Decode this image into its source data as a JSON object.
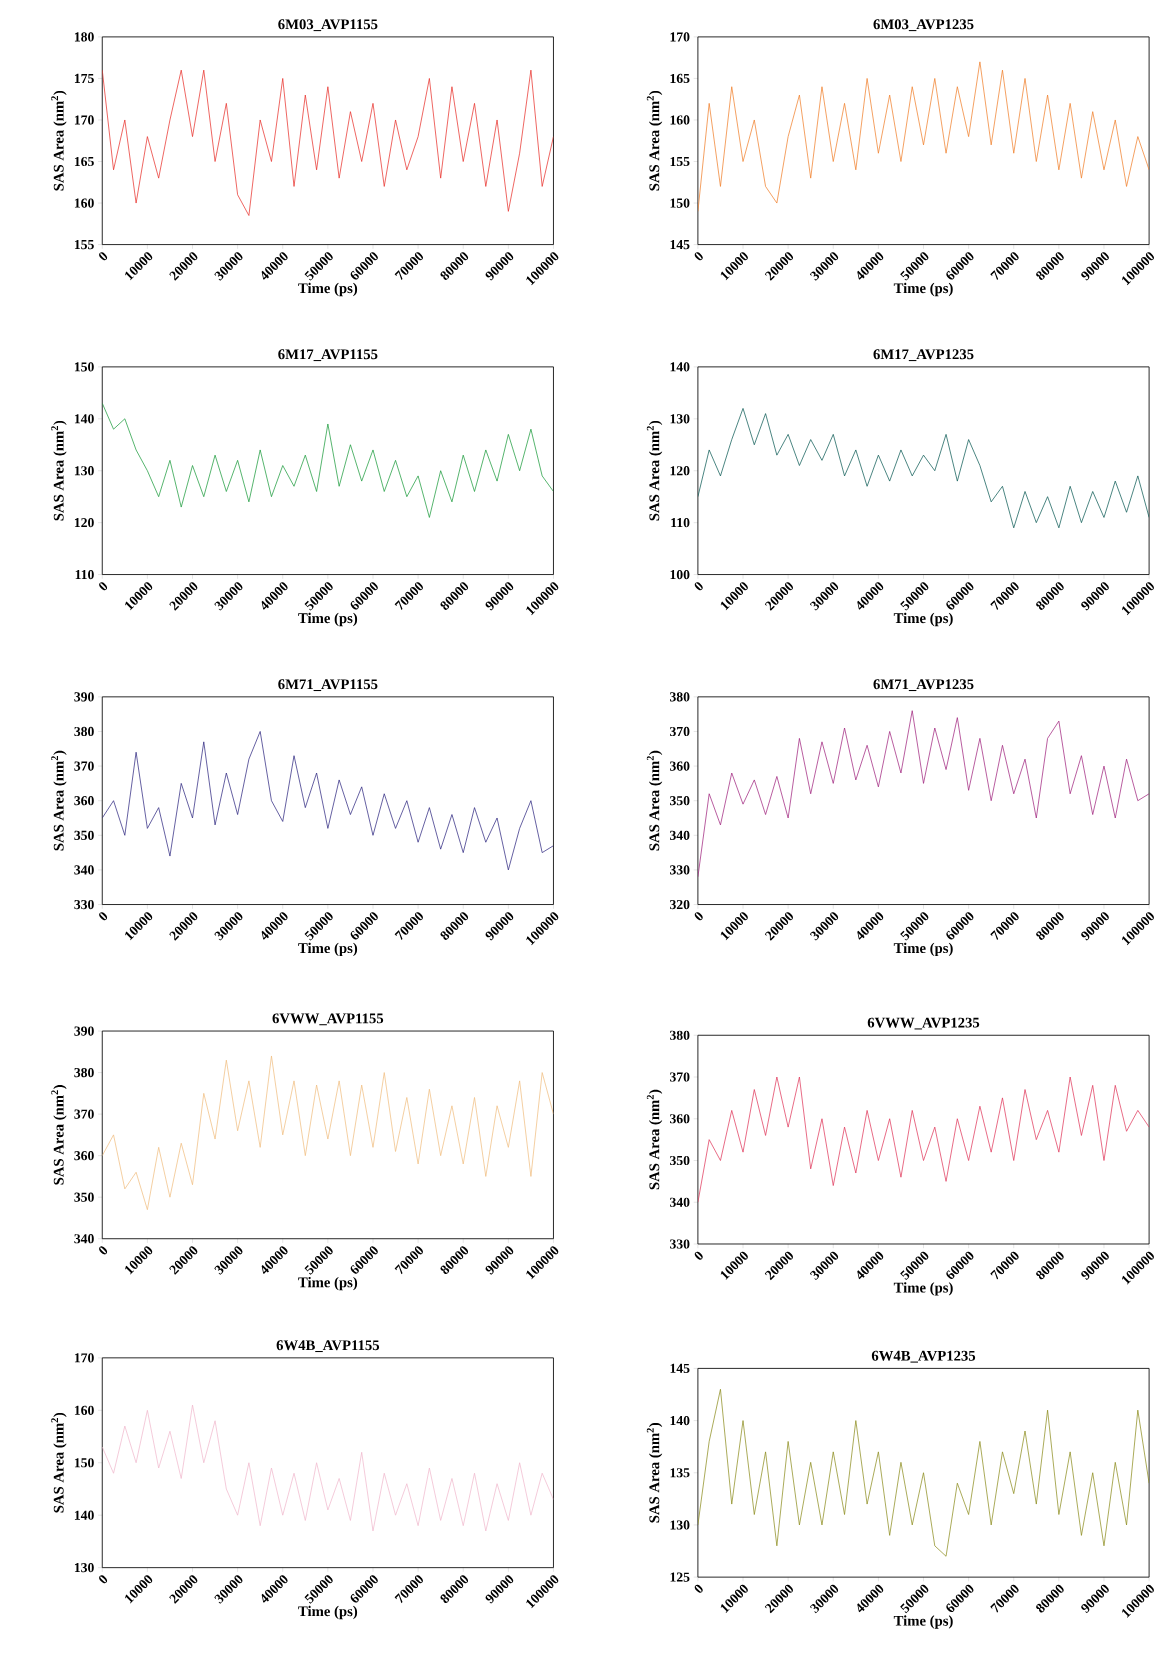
{
  "chart_data": [
    {
      "type": "line",
      "title": "6M03_AVP1155",
      "xlabel": "Time (ps)",
      "ylabel": "SAS Area (nm$^{2}$)",
      "color": "#e8302a",
      "xlim": [
        0,
        100000
      ],
      "xticks": [
        0,
        10000,
        20000,
        30000,
        40000,
        50000,
        60000,
        70000,
        80000,
        90000,
        100000
      ],
      "ylim": [
        155,
        180
      ],
      "yticks": [
        155,
        160,
        165,
        170,
        175,
        180
      ],
      "x": [
        0,
        2500,
        5000,
        7500,
        10000,
        12500,
        15000,
        17500,
        20000,
        22500,
        25000,
        27500,
        30000,
        32500,
        35000,
        37500,
        40000,
        42500,
        45000,
        47500,
        50000,
        52500,
        55000,
        57500,
        60000,
        62500,
        65000,
        67500,
        70000,
        72500,
        75000,
        77500,
        80000,
        82500,
        85000,
        87500,
        90000,
        92500,
        95000,
        97500,
        100000
      ],
      "values": [
        176,
        164,
        170,
        160,
        168,
        163,
        170,
        176,
        168,
        176,
        165,
        172,
        161,
        158.5,
        170,
        165,
        175,
        162,
        173,
        164,
        174,
        163,
        171,
        165,
        172,
        162,
        170,
        164,
        168,
        175,
        163,
        174,
        165,
        172,
        162,
        170,
        159,
        166,
        176,
        162,
        168
      ]
    },
    {
      "type": "line",
      "title": "6M03_AVP1235",
      "xlabel": "Time (ps)",
      "ylabel": "SAS Area (nm$^{2}$)",
      "color": "#f07f2a",
      "xlim": [
        0,
        100000
      ],
      "xticks": [
        0,
        10000,
        20000,
        30000,
        40000,
        50000,
        60000,
        70000,
        80000,
        90000,
        100000
      ],
      "ylim": [
        145,
        170
      ],
      "yticks": [
        145,
        150,
        155,
        160,
        165,
        170
      ],
      "x": [
        0,
        2500,
        5000,
        7500,
        10000,
        12500,
        15000,
        17500,
        20000,
        22500,
        25000,
        27500,
        30000,
        32500,
        35000,
        37500,
        40000,
        42500,
        45000,
        47500,
        50000,
        52500,
        55000,
        57500,
        60000,
        62500,
        65000,
        67500,
        70000,
        72500,
        75000,
        77500,
        80000,
        82500,
        85000,
        87500,
        90000,
        92500,
        95000,
        97500,
        100000
      ],
      "values": [
        149,
        162,
        152,
        164,
        155,
        160,
        152,
        150,
        158,
        163,
        153,
        164,
        155,
        162,
        154,
        165,
        156,
        163,
        155,
        164,
        157,
        165,
        156,
        164,
        158,
        167,
        157,
        166,
        156,
        165,
        155,
        163,
        154,
        162,
        153,
        161,
        154,
        160,
        152,
        158,
        154
      ]
    },
    {
      "type": "line",
      "title": "6M17_AVP1155",
      "xlabel": "Time (ps)",
      "ylabel": "SAS Area (nm$^{2}$)",
      "color": "#1a9a3a",
      "xlim": [
        0,
        100000
      ],
      "xticks": [
        0,
        10000,
        20000,
        30000,
        40000,
        50000,
        60000,
        70000,
        80000,
        90000,
        100000
      ],
      "ylim": [
        110,
        150
      ],
      "yticks": [
        110,
        120,
        130,
        140,
        150
      ],
      "x": [
        0,
        2500,
        5000,
        7500,
        10000,
        12500,
        15000,
        17500,
        20000,
        22500,
        25000,
        27500,
        30000,
        32500,
        35000,
        37500,
        40000,
        42500,
        45000,
        47500,
        50000,
        52500,
        55000,
        57500,
        60000,
        62500,
        65000,
        67500,
        70000,
        72500,
        75000,
        77500,
        80000,
        82500,
        85000,
        87500,
        90000,
        92500,
        95000,
        97500,
        100000
      ],
      "values": [
        143,
        138,
        140,
        134,
        130,
        125,
        132,
        123,
        131,
        125,
        133,
        126,
        132,
        124,
        134,
        125,
        131,
        127,
        133,
        126,
        139,
        127,
        135,
        128,
        134,
        126,
        132,
        125,
        129,
        121,
        130,
        124,
        133,
        126,
        134,
        128,
        137,
        130,
        138,
        129,
        126
      ]
    },
    {
      "type": "line",
      "title": "6M17_AVP1235",
      "xlabel": "Time (ps)",
      "ylabel": "SAS Area (nm$^{2}$)",
      "color": "#0b5a55",
      "xlim": [
        0,
        100000
      ],
      "xticks": [
        0,
        10000,
        20000,
        30000,
        40000,
        50000,
        60000,
        70000,
        80000,
        90000,
        100000
      ],
      "ylim": [
        100,
        140
      ],
      "yticks": [
        100,
        110,
        120,
        130,
        140
      ],
      "x": [
        0,
        2500,
        5000,
        7500,
        10000,
        12500,
        15000,
        17500,
        20000,
        22500,
        25000,
        27500,
        30000,
        32500,
        35000,
        37500,
        40000,
        42500,
        45000,
        47500,
        50000,
        52500,
        55000,
        57500,
        60000,
        62500,
        65000,
        67500,
        70000,
        72500,
        75000,
        77500,
        80000,
        82500,
        85000,
        87500,
        90000,
        92500,
        95000,
        97500,
        100000
      ],
      "values": [
        115,
        124,
        119,
        126,
        132,
        125,
        131,
        123,
        127,
        121,
        126,
        122,
        127,
        119,
        124,
        117,
        123,
        118,
        124,
        119,
        123,
        120,
        127,
        118,
        126,
        121,
        114,
        117,
        109,
        116,
        110,
        115,
        109,
        117,
        110,
        116,
        111,
        118,
        112,
        119,
        111
      ]
    },
    {
      "type": "line",
      "title": "6M71_AVP1155",
      "xlabel": "Time (ps)",
      "ylabel": "SAS Area (nm$^{2}$)",
      "color": "#2e2780",
      "xlim": [
        0,
        100000
      ],
      "xticks": [
        0,
        10000,
        20000,
        30000,
        40000,
        50000,
        60000,
        70000,
        80000,
        90000,
        100000
      ],
      "ylim": [
        330,
        390
      ],
      "yticks": [
        330,
        340,
        350,
        360,
        370,
        380,
        390
      ],
      "x": [
        0,
        2500,
        5000,
        7500,
        10000,
        12500,
        15000,
        17500,
        20000,
        22500,
        25000,
        27500,
        30000,
        32500,
        35000,
        37500,
        40000,
        42500,
        45000,
        47500,
        50000,
        52500,
        55000,
        57500,
        60000,
        62500,
        65000,
        67500,
        70000,
        72500,
        75000,
        77500,
        80000,
        82500,
        85000,
        87500,
        90000,
        92500,
        95000,
        97500,
        100000
      ],
      "values": [
        355,
        360,
        350,
        374,
        352,
        358,
        344,
        365,
        355,
        377,
        353,
        368,
        356,
        372,
        380,
        360,
        354,
        373,
        358,
        368,
        352,
        366,
        356,
        364,
        350,
        362,
        352,
        360,
        348,
        358,
        346,
        356,
        345,
        358,
        348,
        355,
        340,
        352,
        360,
        345,
        347
      ]
    },
    {
      "type": "line",
      "title": "6M71_AVP1235",
      "xlabel": "Time (ps)",
      "ylabel": "SAS Area (nm$^{2}$)",
      "color": "#a0237e",
      "xlim": [
        0,
        100000
      ],
      "xticks": [
        0,
        10000,
        20000,
        30000,
        40000,
        50000,
        60000,
        70000,
        80000,
        90000,
        100000
      ],
      "ylim": [
        320,
        380
      ],
      "yticks": [
        320,
        330,
        340,
        350,
        360,
        370,
        380
      ],
      "x": [
        0,
        2500,
        5000,
        7500,
        10000,
        12500,
        15000,
        17500,
        20000,
        22500,
        25000,
        27500,
        30000,
        32500,
        35000,
        37500,
        40000,
        42500,
        45000,
        47500,
        50000,
        52500,
        55000,
        57500,
        60000,
        62500,
        65000,
        67500,
        70000,
        72500,
        75000,
        77500,
        80000,
        82500,
        85000,
        87500,
        90000,
        92500,
        95000,
        97500,
        100000
      ],
      "values": [
        328,
        352,
        343,
        358,
        349,
        356,
        346,
        357,
        345,
        368,
        352,
        367,
        355,
        371,
        356,
        366,
        354,
        370,
        358,
        376,
        355,
        371,
        359,
        374,
        353,
        368,
        350,
        366,
        352,
        362,
        345,
        368,
        373,
        352,
        363,
        346,
        360,
        345,
        362,
        350,
        352
      ]
    },
    {
      "type": "line",
      "title": "6VWW_AVP1155",
      "xlabel": "Time (ps)",
      "ylabel": "SAS Area (nm$^{2}$)",
      "color": "#f0bd80",
      "xlim": [
        0,
        100000
      ],
      "xticks": [
        0,
        10000,
        20000,
        30000,
        40000,
        50000,
        60000,
        70000,
        80000,
        90000,
        100000
      ],
      "ylim": [
        340,
        390
      ],
      "yticks": [
        340,
        350,
        360,
        370,
        380,
        390
      ],
      "x": [
        0,
        2500,
        5000,
        7500,
        10000,
        12500,
        15000,
        17500,
        20000,
        22500,
        25000,
        27500,
        30000,
        32500,
        35000,
        37500,
        40000,
        42500,
        45000,
        47500,
        50000,
        52500,
        55000,
        57500,
        60000,
        62500,
        65000,
        67500,
        70000,
        72500,
        75000,
        77500,
        80000,
        82500,
        85000,
        87500,
        90000,
        92500,
        95000,
        97500,
        100000
      ],
      "values": [
        360,
        365,
        352,
        356,
        347,
        362,
        350,
        363,
        353,
        375,
        364,
        383,
        366,
        378,
        362,
        384,
        365,
        378,
        360,
        377,
        364,
        378,
        360,
        377,
        362,
        380,
        361,
        374,
        358,
        376,
        360,
        372,
        358,
        374,
        355,
        372,
        362,
        378,
        355,
        380,
        370
      ]
    },
    {
      "type": "line",
      "title": "6VWW_AVP1235",
      "xlabel": "Time (ps)",
      "ylabel": "SAS Area (nm$^{2}$)",
      "color": "#e0365a",
      "xlim": [
        0,
        100000
      ],
      "xticks": [
        0,
        10000,
        20000,
        30000,
        40000,
        50000,
        60000,
        70000,
        80000,
        90000,
        100000
      ],
      "ylim": [
        330,
        380
      ],
      "yticks": [
        330,
        340,
        350,
        360,
        370,
        380
      ],
      "x": [
        0,
        2500,
        5000,
        7500,
        10000,
        12500,
        15000,
        17500,
        20000,
        22500,
        25000,
        27500,
        30000,
        32500,
        35000,
        37500,
        40000,
        42500,
        45000,
        47500,
        50000,
        52500,
        55000,
        57500,
        60000,
        62500,
        65000,
        67500,
        70000,
        72500,
        75000,
        77500,
        80000,
        82500,
        85000,
        87500,
        90000,
        92500,
        95000,
        97500,
        100000
      ],
      "values": [
        340,
        355,
        350,
        362,
        352,
        367,
        356,
        370,
        358,
        370,
        348,
        360,
        344,
        358,
        347,
        362,
        350,
        360,
        346,
        362,
        350,
        358,
        345,
        360,
        350,
        363,
        352,
        365,
        350,
        367,
        355,
        362,
        352,
        370,
        356,
        368,
        350,
        368,
        357,
        362,
        358
      ]
    },
    {
      "type": "line",
      "title": "6W4B_AVP1155",
      "xlabel": "Time (ps)",
      "ylabel": "SAS Area (nm$^{2}$)",
      "color": "#f0b8cc",
      "xlim": [
        0,
        100000
      ],
      "xticks": [
        0,
        10000,
        20000,
        30000,
        40000,
        50000,
        60000,
        70000,
        80000,
        90000,
        100000
      ],
      "ylim": [
        130,
        170
      ],
      "yticks": [
        130,
        140,
        150,
        160,
        170
      ],
      "x": [
        0,
        2500,
        5000,
        7500,
        10000,
        12500,
        15000,
        17500,
        20000,
        22500,
        25000,
        27500,
        30000,
        32500,
        35000,
        37500,
        40000,
        42500,
        45000,
        47500,
        50000,
        52500,
        55000,
        57500,
        60000,
        62500,
        65000,
        67500,
        70000,
        72500,
        75000,
        77500,
        80000,
        82500,
        85000,
        87500,
        90000,
        92500,
        95000,
        97500,
        100000
      ],
      "values": [
        153,
        148,
        157,
        150,
        160,
        149,
        156,
        147,
        161,
        150,
        158,
        145,
        140,
        150,
        138,
        149,
        140,
        148,
        139,
        150,
        141,
        147,
        139,
        152,
        137,
        148,
        140,
        146,
        138,
        149,
        139,
        147,
        138,
        148,
        137,
        146,
        139,
        150,
        140,
        148,
        143
      ]
    },
    {
      "type": "line",
      "title": "6W4B_AVP1235",
      "xlabel": "Time (ps)",
      "ylabel": "SAS Area (nm$^{2}$)",
      "color": "#8c8c1e",
      "xlim": [
        0,
        100000
      ],
      "xticks": [
        0,
        10000,
        20000,
        30000,
        40000,
        50000,
        60000,
        70000,
        80000,
        90000,
        100000
      ],
      "ylim": [
        125,
        145
      ],
      "yticks": [
        125,
        130,
        135,
        140,
        145
      ],
      "x": [
        0,
        2500,
        5000,
        7500,
        10000,
        12500,
        15000,
        17500,
        20000,
        22500,
        25000,
        27500,
        30000,
        32500,
        35000,
        37500,
        40000,
        42500,
        45000,
        47500,
        50000,
        52500,
        55000,
        57500,
        60000,
        62500,
        65000,
        67500,
        70000,
        72500,
        75000,
        77500,
        80000,
        82500,
        85000,
        87500,
        90000,
        92500,
        95000,
        97500,
        100000
      ],
      "values": [
        130,
        138,
        143,
        132,
        140,
        131,
        137,
        128,
        138,
        130,
        136,
        130,
        137,
        131,
        140,
        132,
        137,
        129,
        136,
        130,
        135,
        128,
        127,
        134,
        131,
        138,
        130,
        137,
        133,
        139,
        132,
        141,
        131,
        137,
        129,
        135,
        128,
        136,
        130,
        141,
        134
      ]
    }
  ]
}
